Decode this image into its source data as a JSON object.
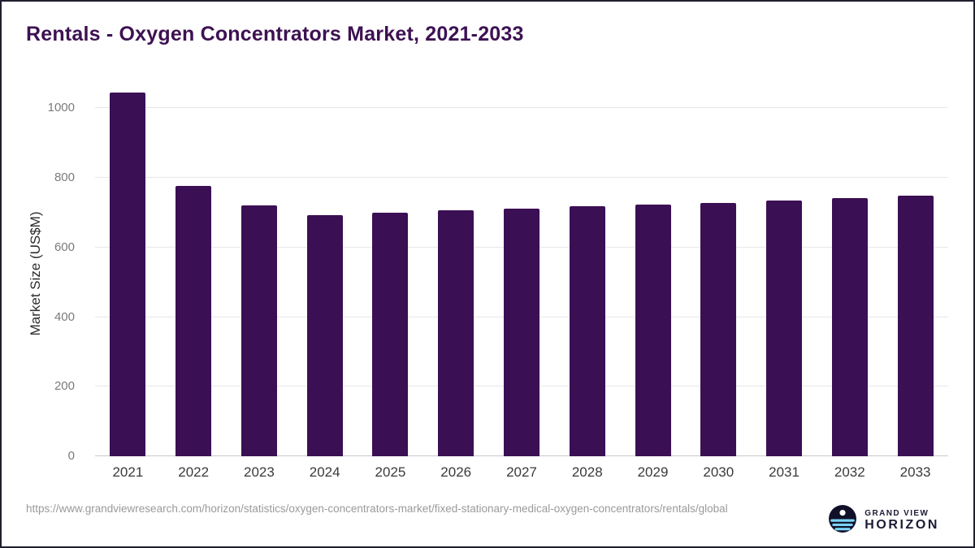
{
  "title": "Rentals - Oxygen Concentrators Market, 2021-2033",
  "source": {
    "url": "https://www.grandviewresearch.com/horizon/statistics/oxygen-concentrators-market/fixed-stationary-medical-oxygen-concentrators/rentals/global"
  },
  "logo": {
    "top": "GRAND VIEW",
    "bottom": "HORIZON"
  },
  "colors": {
    "bar": "#3b0f54",
    "title": "#3d1152",
    "grid": "#e7e7e7",
    "logo_accent": "#79d3f4",
    "logo_dark": "#101028"
  },
  "chart_data": {
    "type": "bar",
    "title": "Rentals - Oxygen Concentrators Market, 2021-2033",
    "xlabel": "",
    "ylabel": "Market Size (US$M)",
    "categories": [
      "2021",
      "2022",
      "2023",
      "2024",
      "2025",
      "2026",
      "2027",
      "2028",
      "2029",
      "2030",
      "2031",
      "2032",
      "2033"
    ],
    "values": [
      1045,
      778,
      722,
      692,
      701,
      707,
      712,
      718,
      724,
      729,
      735,
      741,
      748
    ],
    "ylim": [
      0,
      1050
    ],
    "yticks": [
      0,
      200,
      400,
      600,
      800,
      1000
    ],
    "grid": true,
    "legend": "none",
    "bar_color": "#3b0f54"
  }
}
